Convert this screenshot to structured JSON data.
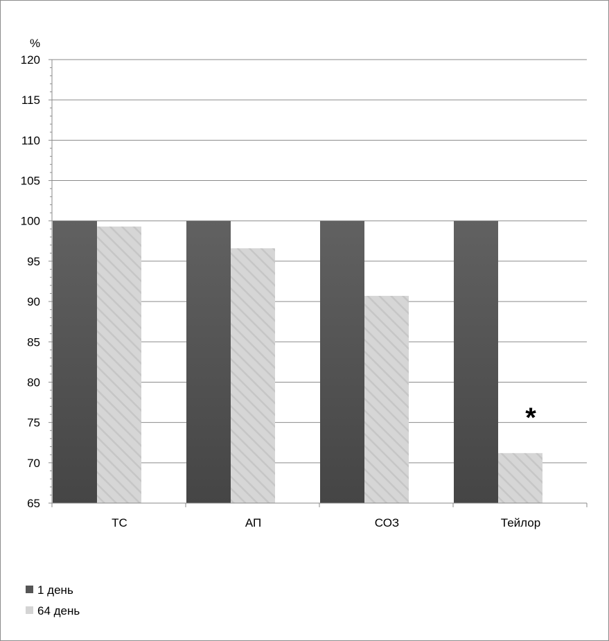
{
  "chart_data": {
    "type": "bar",
    "ylabel": "%",
    "ylim": [
      65,
      120
    ],
    "yticks": [
      65,
      70,
      75,
      80,
      85,
      90,
      95,
      100,
      105,
      110,
      115,
      120
    ],
    "grid": true,
    "legend_position": "bottom-left",
    "categories": [
      "ТС",
      "АП",
      "СОЗ",
      "Тейлор"
    ],
    "series": [
      {
        "name": "1 день",
        "values": [
          100,
          100,
          100,
          100
        ],
        "color": "#555555"
      },
      {
        "name": "64 день",
        "values": [
          99.3,
          96.6,
          90.7,
          71.2
        ],
        "color": "#d4d4d4"
      }
    ],
    "annotations": [
      {
        "category": "Тейлор",
        "series": "64 день",
        "text": "*"
      }
    ]
  }
}
